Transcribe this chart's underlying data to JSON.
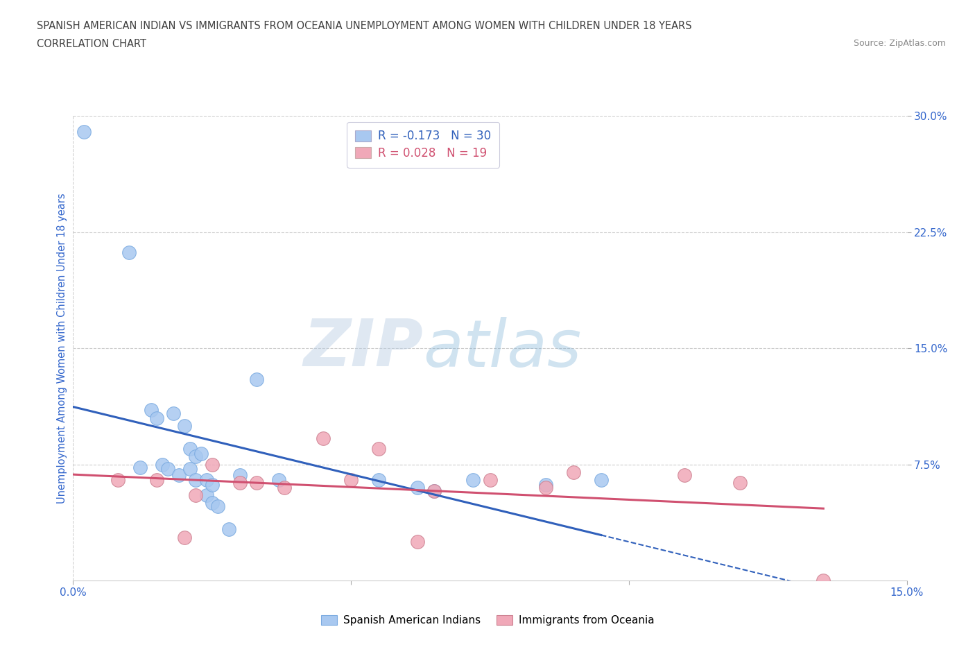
{
  "title_line1": "SPANISH AMERICAN INDIAN VS IMMIGRANTS FROM OCEANIA UNEMPLOYMENT AMONG WOMEN WITH CHILDREN UNDER 18 YEARS",
  "title_line2": "CORRELATION CHART",
  "source": "Source: ZipAtlas.com",
  "ylabel": "Unemployment Among Women with Children Under 18 years",
  "xlim": [
    0.0,
    0.15
  ],
  "ylim": [
    0.0,
    0.3
  ],
  "blue_scatter_x": [
    0.002,
    0.01,
    0.012,
    0.014,
    0.015,
    0.016,
    0.017,
    0.018,
    0.019,
    0.02,
    0.021,
    0.021,
    0.022,
    0.022,
    0.023,
    0.024,
    0.024,
    0.025,
    0.025,
    0.026,
    0.028,
    0.03,
    0.033,
    0.037,
    0.055,
    0.062,
    0.065,
    0.072,
    0.085,
    0.095
  ],
  "blue_scatter_y": [
    0.29,
    0.212,
    0.073,
    0.11,
    0.105,
    0.075,
    0.072,
    0.108,
    0.068,
    0.1,
    0.085,
    0.072,
    0.08,
    0.065,
    0.082,
    0.065,
    0.055,
    0.062,
    0.05,
    0.048,
    0.033,
    0.068,
    0.13,
    0.065,
    0.065,
    0.06,
    0.058,
    0.065,
    0.062,
    0.065
  ],
  "pink_scatter_x": [
    0.008,
    0.015,
    0.02,
    0.022,
    0.025,
    0.03,
    0.033,
    0.038,
    0.045,
    0.05,
    0.055,
    0.062,
    0.065,
    0.075,
    0.085,
    0.09,
    0.11,
    0.12,
    0.135
  ],
  "pink_scatter_y": [
    0.065,
    0.065,
    0.028,
    0.055,
    0.075,
    0.063,
    0.063,
    0.06,
    0.092,
    0.065,
    0.085,
    0.025,
    0.058,
    0.065,
    0.06,
    0.07,
    0.068,
    0.063,
    0.0
  ],
  "blue_R": -0.173,
  "blue_N": 30,
  "pink_R": 0.028,
  "pink_N": 19,
  "blue_color": "#a8c8f0",
  "blue_line_color": "#3060bb",
  "pink_color": "#f0a8b8",
  "pink_line_color": "#d05070",
  "blue_dot_edge": "#7aaae0",
  "pink_dot_edge": "#cc8090",
  "background_color": "#ffffff",
  "grid_color": "#cccccc",
  "watermark_zip": "ZIP",
  "watermark_atlas": "atlas",
  "title_color": "#404040",
  "axis_label_color": "#3366cc",
  "tick_label_color": "#3366cc"
}
